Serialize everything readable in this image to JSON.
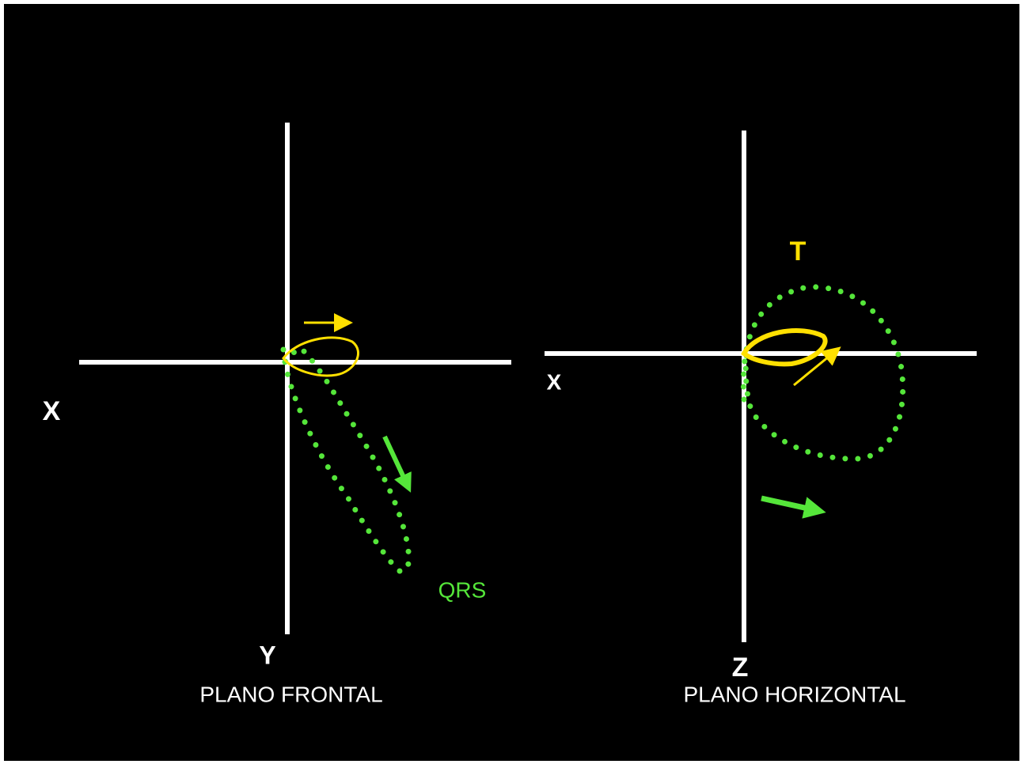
{
  "frontal_plane": {
    "x_axis_label": "X",
    "y_axis_label": "Y",
    "loop_label": "QRS",
    "title": "PLANO FRONTAL"
  },
  "horizontal_plane": {
    "x_axis_label": "X",
    "z_axis_label": "Z",
    "loop_label": "T",
    "title": "PLANO HORIZONTAL"
  }
}
